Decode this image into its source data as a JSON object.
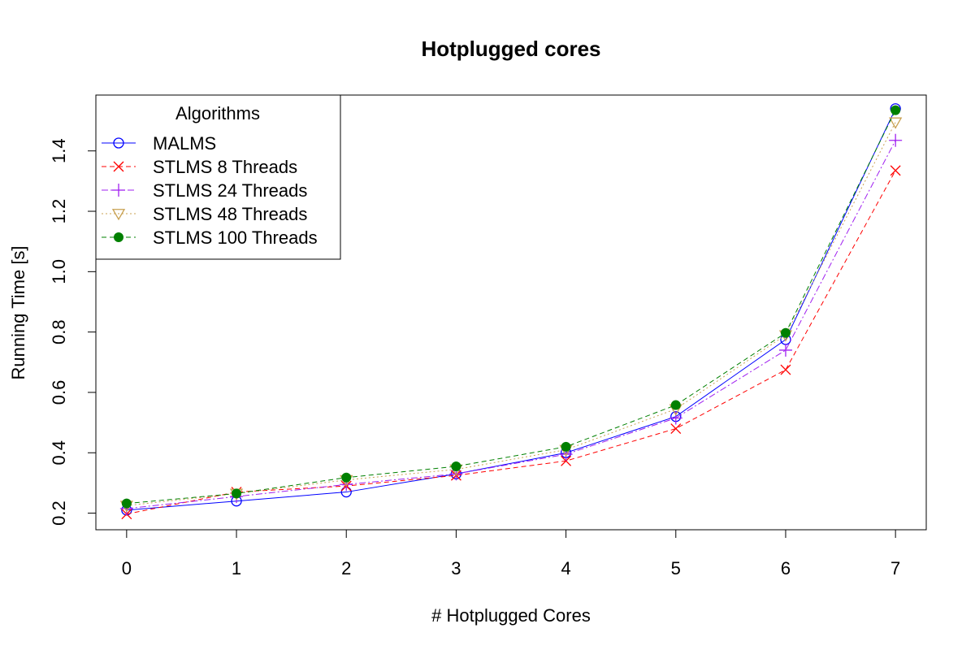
{
  "chart_data": {
    "type": "line",
    "title": "Hotplugged cores",
    "xlabel": "# Hotplugged Cores",
    "ylabel": "Running Time [s]",
    "x": [
      0,
      1,
      2,
      3,
      4,
      5,
      6,
      7
    ],
    "x_ticks": [
      "0",
      "1",
      "2",
      "3",
      "4",
      "5",
      "6",
      "7"
    ],
    "y_ticks": [
      "0.2",
      "0.4",
      "0.6",
      "0.8",
      "1.0",
      "1.2",
      "1.4"
    ],
    "xlim": [
      -0.28,
      7.28
    ],
    "ylim": [
      0.145,
      1.585
    ],
    "grid": false,
    "legend": {
      "title": "Algorithms",
      "position": "top-left"
    },
    "series": [
      {
        "name": "MALMS",
        "color": "#0000ff",
        "marker": "circle-open",
        "line": "solid",
        "values": [
          0.21,
          0.24,
          0.27,
          0.33,
          0.4,
          0.52,
          0.775,
          1.54
        ]
      },
      {
        "name": "STLMS 8 Threads",
        "color": "#ff0000",
        "marker": "cross-x",
        "line": "dashed",
        "values": [
          0.197,
          0.27,
          0.29,
          0.325,
          0.373,
          0.48,
          0.675,
          1.335
        ]
      },
      {
        "name": "STLMS 24 Threads",
        "color": "#a020f0",
        "marker": "plus",
        "line": "dashdot",
        "values": [
          0.215,
          0.255,
          0.295,
          0.33,
          0.395,
          0.515,
          0.74,
          1.435
        ]
      },
      {
        "name": "STLMS 48 Threads",
        "color": "#c8a050",
        "marker": "triangle-down-open",
        "line": "dotted",
        "values": [
          0.225,
          0.265,
          0.31,
          0.345,
          0.41,
          0.545,
          0.79,
          1.495
        ]
      },
      {
        "name": "STLMS 100 Threads",
        "color": "#008000",
        "marker": "circle-filled",
        "line": "dashed",
        "values": [
          0.232,
          0.265,
          0.318,
          0.355,
          0.42,
          0.558,
          0.797,
          1.535
        ]
      }
    ]
  }
}
